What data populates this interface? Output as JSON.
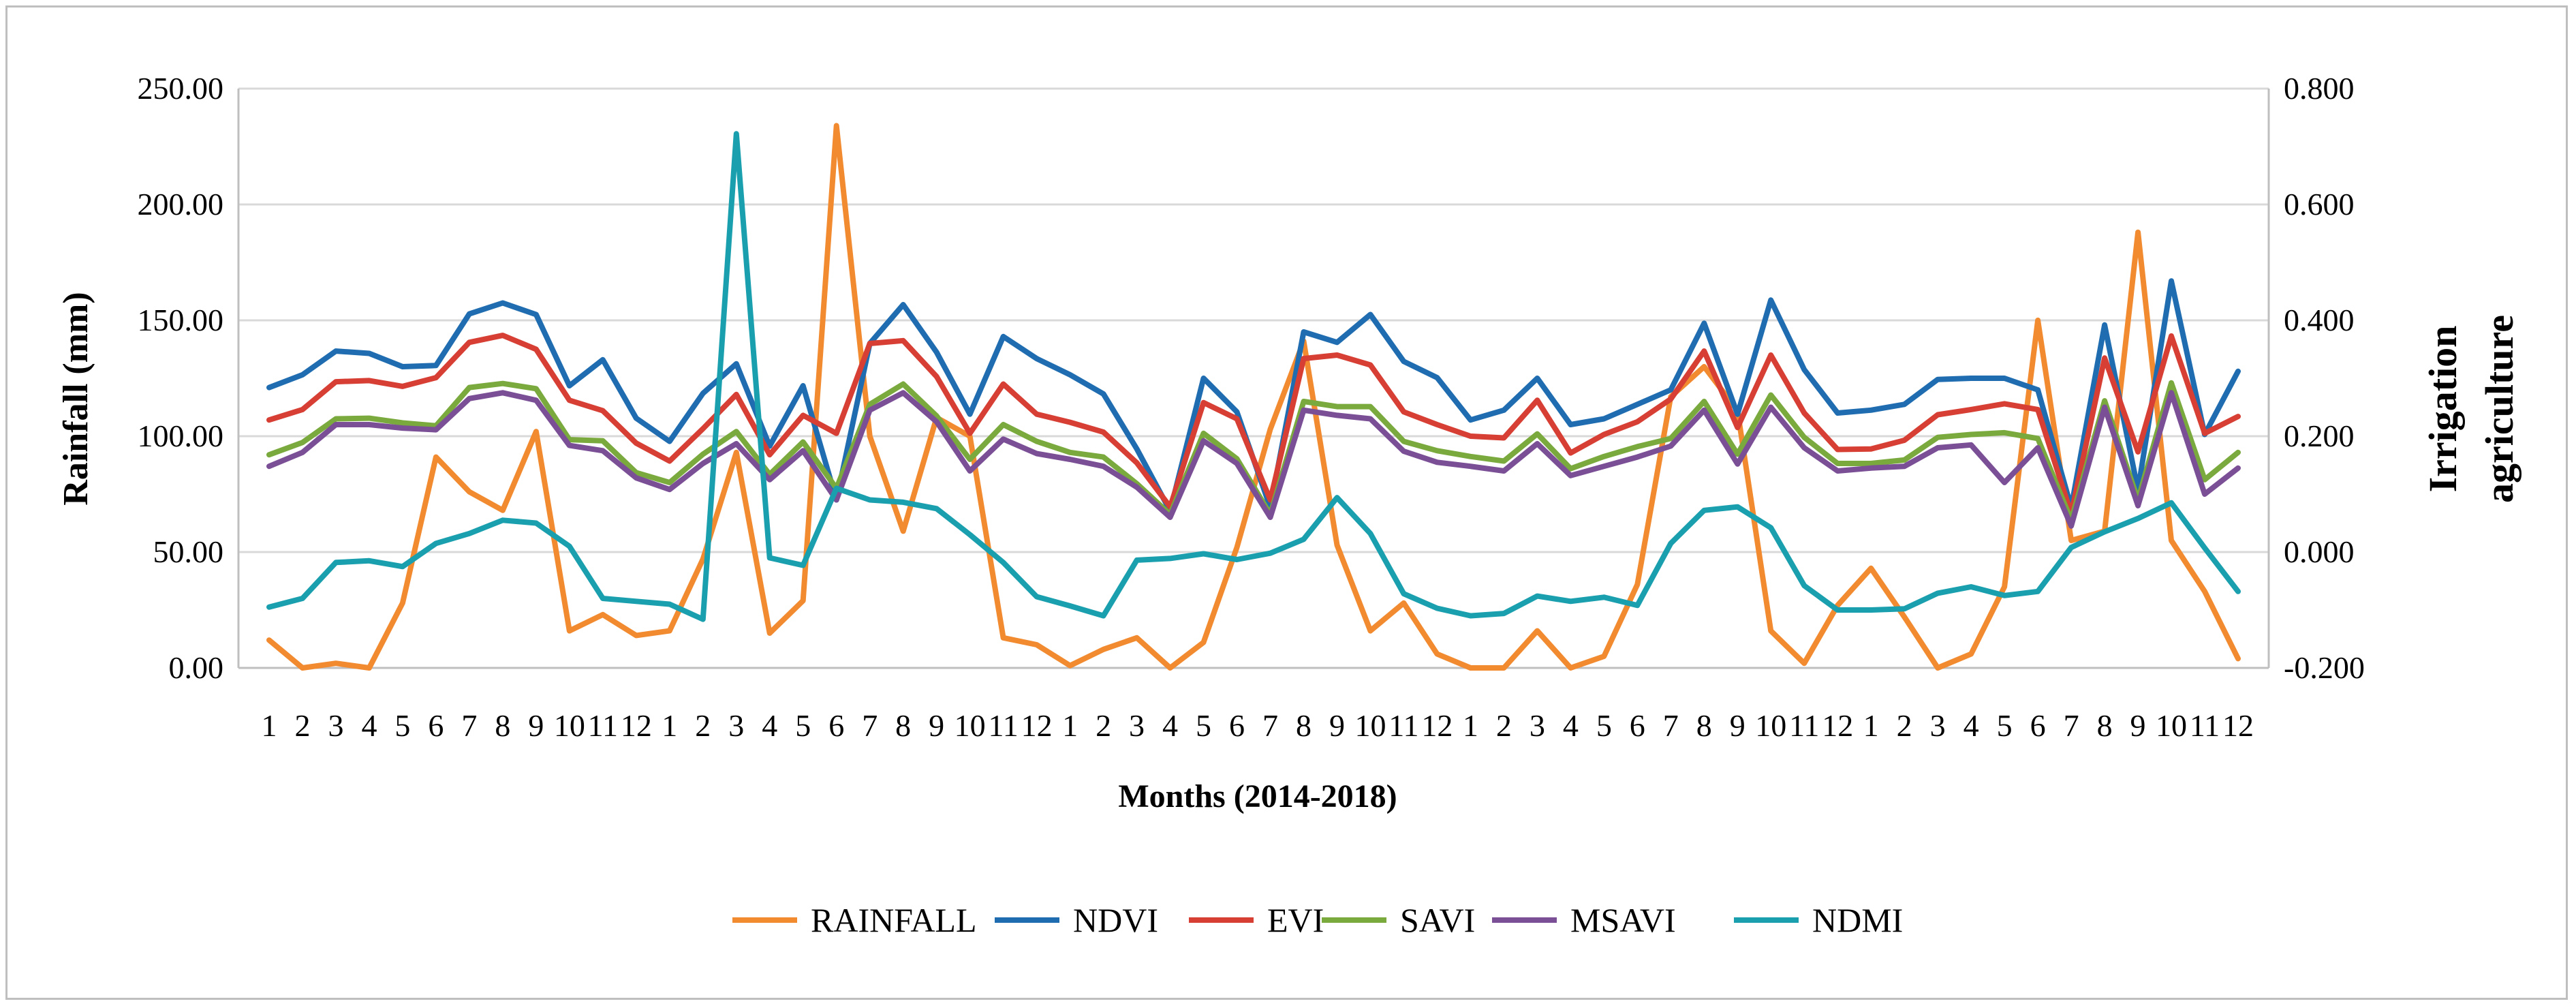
{
  "chart_data": {
    "type": "line",
    "xlabel": "Months (2014-2018)",
    "ylabel_left": "Rainfall (mm)",
    "ylabel_right": [
      "Irrigation",
      "agriculture"
    ],
    "ylim_left": [
      0,
      250
    ],
    "ylim_right": [
      -0.2,
      0.8
    ],
    "yticks_left": [
      "0.00",
      "50.00",
      "100.00",
      "150.00",
      "200.00",
      "250.00"
    ],
    "yticks_right": [
      "-0.200",
      "0.000",
      "0.200",
      "0.400",
      "0.600",
      "0.800"
    ],
    "categories": [
      "1",
      "2",
      "3",
      "4",
      "5",
      "6",
      "7",
      "8",
      "9",
      "10",
      "11",
      "12",
      "1",
      "2",
      "3",
      "4",
      "5",
      "6",
      "7",
      "8",
      "9",
      "10",
      "11",
      "12",
      "1",
      "2",
      "3",
      "4",
      "5",
      "6",
      "7",
      "8",
      "9",
      "10",
      "11",
      "12",
      "1",
      "2",
      "3",
      "4",
      "5",
      "6",
      "7",
      "8",
      "9",
      "10",
      "11",
      "12",
      "1",
      "2",
      "3",
      "4",
      "5",
      "6",
      "7",
      "8",
      "9",
      "10",
      "11",
      "12"
    ],
    "series": [
      {
        "name": "RAINFALL",
        "axis": "left",
        "color": "#f28a30",
        "values": [
          12,
          0,
          2,
          0,
          28,
          91,
          76,
          68,
          102,
          16,
          23,
          14,
          16,
          47,
          93,
          15,
          29,
          234,
          100,
          59,
          108,
          100,
          13,
          10,
          1,
          8,
          13,
          0,
          11,
          52,
          103,
          141,
          53,
          16,
          28,
          6,
          0,
          0,
          16,
          0,
          5,
          36,
          117,
          130,
          111,
          16,
          2,
          27,
          43,
          22,
          0,
          6,
          35,
          150,
          55,
          59,
          188,
          55,
          33,
          4
        ]
      },
      {
        "name": "NDVI",
        "axis": "right",
        "color": "#1f6db0",
        "values": [
          0.284,
          0.306,
          0.347,
          0.343,
          0.32,
          0.322,
          0.411,
          0.43,
          0.41,
          0.287,
          0.332,
          0.231,
          0.191,
          0.274,
          0.325,
          0.183,
          0.287,
          0.09,
          0.36,
          0.427,
          0.345,
          0.238,
          0.372,
          0.334,
          0.306,
          0.273,
          0.178,
          0.071,
          0.3,
          0.242,
          0.077,
          0.38,
          0.362,
          0.41,
          0.329,
          0.301,
          0.228,
          0.245,
          0.3,
          0.22,
          0.23,
          0.255,
          0.28,
          0.395,
          0.238,
          0.435,
          0.315,
          0.24,
          0.245,
          0.255,
          0.298,
          0.3,
          0.3,
          0.28,
          0.077,
          0.392,
          0.107,
          0.468,
          0.203,
          0.312
        ]
      },
      {
        "name": "EVI",
        "axis": "right",
        "color": "#d73f34",
        "values": [
          0.228,
          0.246,
          0.294,
          0.296,
          0.286,
          0.301,
          0.362,
          0.374,
          0.35,
          0.262,
          0.244,
          0.188,
          0.157,
          0.213,
          0.272,
          0.168,
          0.236,
          0.205,
          0.36,
          0.365,
          0.303,
          0.205,
          0.29,
          0.238,
          0.224,
          0.207,
          0.154,
          0.078,
          0.258,
          0.23,
          0.09,
          0.334,
          0.34,
          0.323,
          0.242,
          0.22,
          0.2,
          0.197,
          0.262,
          0.171,
          0.203,
          0.225,
          0.264,
          0.347,
          0.215,
          0.34,
          0.24,
          0.177,
          0.178,
          0.193,
          0.237,
          0.246,
          0.256,
          0.246,
          0.066,
          0.335,
          0.173,
          0.373,
          0.205,
          0.234
        ]
      },
      {
        "name": "SAVI",
        "axis": "right",
        "color": "#7aaa3e",
        "values": [
          0.168,
          0.189,
          0.23,
          0.231,
          0.223,
          0.218,
          0.284,
          0.291,
          0.282,
          0.194,
          0.192,
          0.137,
          0.12,
          0.169,
          0.208,
          0.134,
          0.19,
          0.11,
          0.255,
          0.29,
          0.235,
          0.16,
          0.22,
          0.191,
          0.172,
          0.164,
          0.118,
          0.065,
          0.205,
          0.161,
          0.065,
          0.26,
          0.251,
          0.251,
          0.191,
          0.175,
          0.165,
          0.157,
          0.204,
          0.144,
          0.165,
          0.182,
          0.196,
          0.26,
          0.169,
          0.271,
          0.198,
          0.153,
          0.153,
          0.159,
          0.198,
          0.203,
          0.206,
          0.196,
          0.055,
          0.261,
          0.09,
          0.292,
          0.125,
          0.172
        ]
      },
      {
        "name": "MSAVI",
        "axis": "right",
        "color": "#7a4f96",
        "values": [
          0.148,
          0.172,
          0.22,
          0.22,
          0.214,
          0.211,
          0.265,
          0.275,
          0.262,
          0.184,
          0.175,
          0.128,
          0.108,
          0.153,
          0.187,
          0.125,
          0.175,
          0.09,
          0.245,
          0.275,
          0.225,
          0.14,
          0.195,
          0.17,
          0.16,
          0.148,
          0.112,
          0.06,
          0.192,
          0.153,
          0.06,
          0.245,
          0.236,
          0.23,
          0.174,
          0.155,
          0.148,
          0.14,
          0.187,
          0.132,
          0.148,
          0.164,
          0.183,
          0.245,
          0.152,
          0.25,
          0.18,
          0.14,
          0.145,
          0.148,
          0.18,
          0.185,
          0.12,
          0.18,
          0.045,
          0.25,
          0.08,
          0.275,
          0.1,
          0.145
        ]
      },
      {
        "name": "NDMI",
        "axis": "right",
        "color": "#1a9fae",
        "values": [
          -0.095,
          -0.08,
          -0.018,
          -0.015,
          -0.025,
          0.015,
          0.032,
          0.055,
          0.05,
          0.01,
          -0.08,
          -0.085,
          -0.09,
          -0.116,
          0.722,
          -0.01,
          -0.023,
          0.11,
          0.09,
          0.086,
          0.075,
          0.03,
          -0.018,
          -0.077,
          -0.093,
          -0.11,
          -0.014,
          -0.011,
          -0.003,
          -0.013,
          -0.002,
          0.022,
          0.094,
          0.032,
          -0.072,
          -0.097,
          -0.11,
          -0.106,
          -0.076,
          -0.085,
          -0.078,
          -0.092,
          0.015,
          0.072,
          0.078,
          0.042,
          -0.058,
          -0.1,
          -0.1,
          -0.098,
          -0.071,
          -0.06,
          -0.075,
          -0.068,
          0.008,
          0.035,
          0.058,
          0.085,
          0.007,
          -0.068
        ]
      }
    ]
  }
}
